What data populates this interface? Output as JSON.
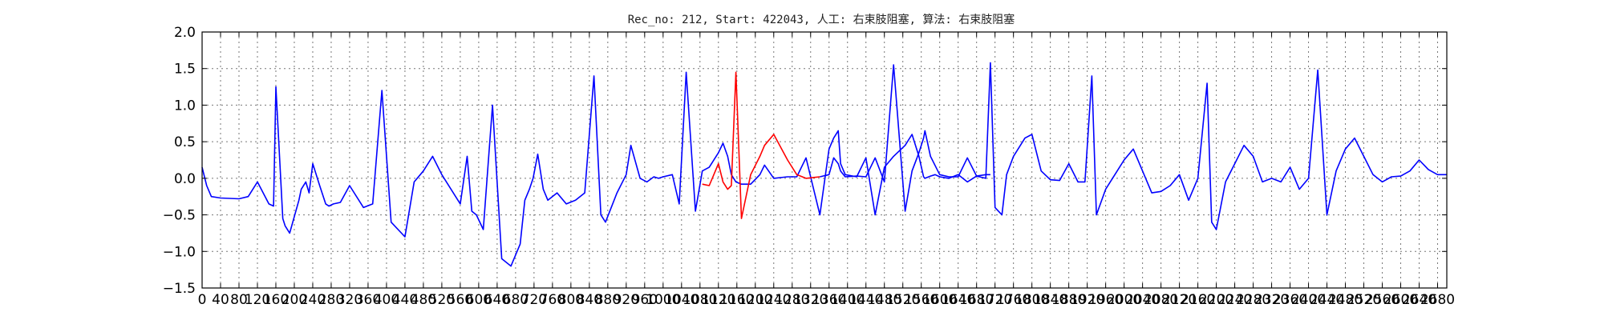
{
  "chart_data": {
    "type": "line",
    "title": "Rec_no: 212, Start: 422043, 人工: 右束肢阻塞, 算法: 右束肢阻塞",
    "xlabel": "",
    "ylabel": "",
    "xlim": [
      0,
      2700
    ],
    "ylim": [
      -1.5,
      2.0
    ],
    "grid": true,
    "legend": "none",
    "yticks": [
      -1.5,
      -1.0,
      -0.5,
      0.0,
      0.5,
      1.0,
      1.5,
      2.0
    ],
    "ytick_labels": [
      "−1.5",
      "−1.0",
      "−0.5",
      "0.0",
      "0.5",
      "1.0",
      "1.5",
      "2.0"
    ],
    "xticks": [
      0,
      40,
      80,
      120,
      160,
      200,
      240,
      280,
      320,
      360,
      400,
      440,
      480,
      520,
      560,
      600,
      640,
      680,
      720,
      760,
      800,
      840,
      880,
      920,
      960,
      1000,
      1040,
      1080,
      1120,
      1160,
      1200,
      1240,
      1280,
      1320,
      1360,
      1400,
      1440,
      1480,
      1520,
      1560,
      1600,
      1640,
      1680,
      1720,
      1760,
      1800,
      1840,
      1880,
      1920,
      1960,
      2000,
      2040,
      2080,
      2120,
      2160,
      2200,
      2240,
      2280,
      2320,
      2360,
      2400,
      2440,
      2480,
      2520,
      2560,
      2600,
      2640,
      2680
    ],
    "xtick_labels": [
      "0",
      "40",
      "80",
      "120",
      "160",
      "200",
      "240",
      "280",
      "320",
      "360",
      "400",
      "440",
      "480",
      "520",
      "560",
      "600",
      "640",
      "680",
      "720",
      "760",
      "800",
      "840",
      "880",
      "920",
      "960",
      "1000",
      "1040",
      "1080",
      "1120",
      "1160",
      "1200",
      "1240",
      "1280",
      "1320",
      "1360",
      "1400",
      "1440",
      "1480",
      "1520",
      "1560",
      "1600",
      "1640",
      "1680",
      "1720",
      "1760",
      "1800",
      "1840",
      "1880",
      "1920",
      "1960",
      "2000",
      "2040",
      "2080",
      "2120",
      "2160",
      "2200",
      "2240",
      "2280",
      "2320",
      "2360",
      "2400",
      "2440",
      "2480",
      "2520",
      "2560",
      "2600",
      "2640",
      "2680"
    ],
    "series": [
      {
        "name": "ecg-before",
        "color": "#0000ff",
        "x": [
          0,
          10,
          20,
          40,
          80,
          100,
          120,
          145,
          155,
          160,
          175,
          180,
          190,
          210,
          215,
          225,
          232,
          240,
          255,
          268,
          275,
          285,
          300,
          320,
          350,
          370,
          390,
          410,
          440,
          460,
          480,
          500,
          520,
          560,
          575,
          585,
          595,
          610,
          630,
          650,
          670,
          690,
          700,
          710,
          718,
          728,
          740,
          750,
          770,
          790,
          810,
          830,
          850,
          865,
          875,
          900,
          920,
          930,
          950,
          965,
          980,
          990,
          1000,
          1020,
          1035,
          1050,
          1070,
          1085,
          1100,
          1120,
          1130,
          1140,
          1148,
          1158,
          1170,
          1190,
          1210,
          1220,
          1240,
          1270,
          1290,
          1310,
          1340,
          1360,
          1370,
          1380,
          1385,
          1395,
          1420,
          1440,
          1460,
          1480,
          1500,
          1525,
          1540,
          1555,
          1565,
          1568,
          1580,
          1590,
          1600,
          1620,
          1640,
          1660,
          1680,
          1700,
          1710
        ],
        "y": [
          0.15,
          -0.1,
          -0.25,
          -0.27,
          -0.28,
          -0.25,
          -0.05,
          -0.35,
          -0.38,
          1.25,
          -0.55,
          -0.65,
          -0.75,
          -0.3,
          -0.15,
          -0.05,
          -0.2,
          0.2,
          -0.1,
          -0.35,
          -0.38,
          -0.35,
          -0.33,
          -0.1,
          -0.4,
          -0.35,
          1.2,
          -0.6,
          -0.8,
          -0.05,
          0.1,
          0.3,
          0.05,
          -0.35,
          0.3,
          -0.45,
          -0.5,
          -0.7,
          1.0,
          -1.1,
          -1.2,
          -0.9,
          -0.3,
          -0.15,
          0.0,
          0.33,
          -0.15,
          -0.3,
          -0.2,
          -0.35,
          -0.3,
          -0.2,
          1.4,
          -0.5,
          -0.6,
          -0.2,
          0.05,
          0.45,
          0.0,
          -0.05,
          0.02,
          0.0,
          0.02,
          0.05,
          -0.35,
          1.45,
          -0.45,
          0.1,
          0.15,
          0.35,
          0.48,
          0.3,
          0.05,
          -0.05,
          -0.08,
          -0.08,
          0.05,
          0.18,
          0.0,
          0.02,
          0.02,
          0.28,
          -0.5,
          0.4,
          0.55,
          0.65,
          0.2,
          0.05,
          0.02,
          0.28,
          -0.5,
          0.15,
          0.3,
          0.45,
          0.6,
          0.3,
          0.02,
          0.0,
          0.03,
          0.05,
          0.02,
          0.0,
          0.05,
          -0.05,
          0.03,
          0.05,
          0.05
        ]
      },
      {
        "name": "ecg-highlight",
        "color": "#ff0000",
        "x": [
          1085,
          1100,
          1120,
          1130,
          1140,
          1148,
          1158,
          1170,
          1190,
          1210,
          1220,
          1240,
          1270,
          1290,
          1310,
          1340
        ],
        "y": [
          -0.08,
          -0.1,
          0.2,
          -0.05,
          -0.15,
          -0.1,
          1.45,
          -0.55,
          0.05,
          0.3,
          0.45,
          0.6,
          0.25,
          0.05,
          0.0,
          0.02
        ]
      },
      {
        "name": "ecg-after",
        "color": "#0000ff",
        "x": [
          1340,
          1360,
          1370,
          1380,
          1385,
          1395,
          1420,
          1440,
          1460,
          1480,
          1500,
          1525,
          1540,
          1555,
          1565,
          1568,
          1580,
          1600,
          1620,
          1640,
          1660,
          1680,
          1700,
          1710,
          1720,
          1735,
          1745,
          1760,
          1775,
          1785,
          1800,
          1820,
          1840,
          1860,
          1880,
          1900,
          1915,
          1930,
          1940,
          1960,
          1980,
          2000,
          2020,
          2040,
          2060,
          2080,
          2100,
          2120,
          2140,
          2160,
          2180,
          2190,
          2200,
          2220,
          2240,
          2260,
          2280,
          2300,
          2320,
          2340,
          2360,
          2380,
          2400,
          2420,
          2440,
          2460,
          2480,
          2500,
          2520,
          2540,
          2560,
          2580,
          2600,
          2620,
          2640,
          2660,
          2680,
          2700
        ],
        "y": [
          0.02,
          0.05,
          0.28,
          0.2,
          0.1,
          0.02,
          0.03,
          0.02,
          0.28,
          -0.05,
          1.55,
          -0.45,
          0.1,
          0.35,
          0.55,
          0.65,
          0.3,
          0.05,
          0.02,
          0.02,
          0.28,
          0.03,
          0.0,
          1.58,
          -0.4,
          -0.5,
          0.05,
          0.3,
          0.45,
          0.55,
          0.6,
          0.1,
          -0.02,
          -0.03,
          0.2,
          -0.05,
          -0.05,
          1.4,
          -0.5,
          -0.15,
          0.05,
          0.25,
          0.4,
          0.1,
          -0.2,
          -0.18,
          -0.1,
          0.05,
          -0.3,
          0.0,
          1.3,
          -0.6,
          -0.7,
          -0.05,
          0.2,
          0.45,
          0.3,
          -0.05,
          0.0,
          -0.05,
          0.15,
          -0.15,
          0.0,
          1.48,
          -0.5,
          0.1,
          0.4,
          0.55,
          0.3,
          0.05,
          -0.05,
          0.02,
          0.03,
          0.1,
          0.25,
          0.12,
          0.05,
          0.05
        ]
      }
    ]
  }
}
